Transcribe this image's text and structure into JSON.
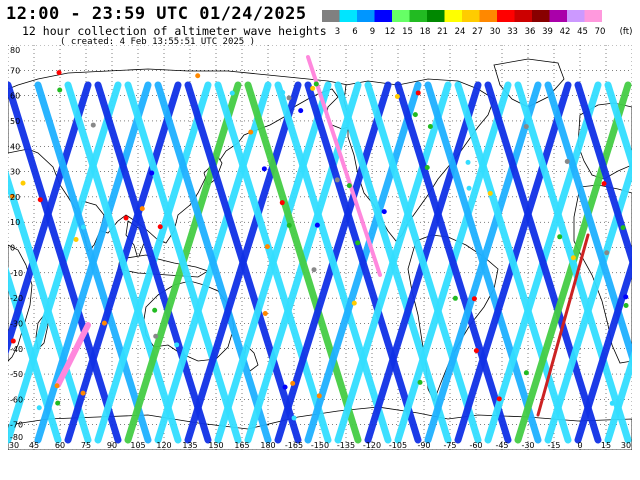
{
  "header": {
    "title": "12:00 - 23:59 UTC 01/24/2025",
    "subtitle": "12 hour collection of altimeter wave heights",
    "created": "( created:  4 Feb 13:55:51 UTC 2025 )"
  },
  "legend": {
    "unit": "(ft)",
    "bins": [
      {
        "label": "3",
        "color": "#808080"
      },
      {
        "label": "6",
        "color": "#00e5ff"
      },
      {
        "label": "9",
        "color": "#0096ff"
      },
      {
        "label": "12",
        "color": "#0000ff"
      },
      {
        "label": "15",
        "color": "#66ff66"
      },
      {
        "label": "18",
        "color": "#22bb22"
      },
      {
        "label": "21",
        "color": "#008800"
      },
      {
        "label": "24",
        "color": "#ffff00"
      },
      {
        "label": "27",
        "color": "#ffcc00"
      },
      {
        "label": "30",
        "color": "#ff8800"
      },
      {
        "label": "33",
        "color": "#ff0000"
      },
      {
        "label": "36",
        "color": "#cc0000"
      },
      {
        "label": "39",
        "color": "#880000"
      },
      {
        "label": "42",
        "color": "#aa00aa"
      },
      {
        "label": "45",
        "color": "#cc99ff"
      },
      {
        "label": "70",
        "color": "#ff99dd"
      }
    ]
  },
  "map": {
    "lon_labels": [
      "30",
      "45",
      "60",
      "75",
      "90",
      "105",
      "120",
      "135",
      "150",
      "165",
      "180",
      "-165",
      "-150",
      "-135",
      "-120",
      "-105",
      "-90",
      "-75",
      "-60",
      "-45",
      "-30",
      "-15",
      "0",
      "15",
      "30"
    ],
    "lat_labels": [
      "80",
      "70",
      "60",
      "50",
      "40",
      "30",
      "20",
      "10",
      "0",
      "-10",
      "-20",
      "-30",
      "-40",
      "-50",
      "-60",
      "-70",
      "-80"
    ],
    "lon_start": 30,
    "lon_span": 360,
    "lat_top": 80,
    "lat_bottom": -80
  }
}
